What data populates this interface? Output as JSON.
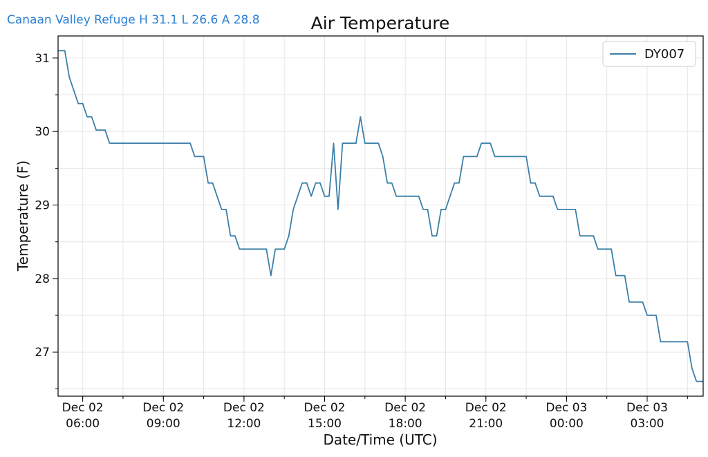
{
  "header": {
    "station_summary": "Canaan Valley Refuge H 31.1 L 26.6 A 28.8"
  },
  "chart_data": {
    "type": "line",
    "title": "Air Temperature",
    "xlabel": "Date/Time (UTC)",
    "ylabel": "Temperature (F)",
    "xlim": [
      "2024-12-02T05:05",
      "2024-12-03T05:05"
    ],
    "ylim": [
      26.4,
      31.3
    ],
    "grid": true,
    "legend": "top-right",
    "line_color": "#3b7fa8",
    "x_ticks": [
      {
        "date": "Dec 02",
        "time": "06:00",
        "at": "2024-12-02T06:00"
      },
      {
        "date": "Dec 02",
        "time": "09:00",
        "at": "2024-12-02T09:00"
      },
      {
        "date": "Dec 02",
        "time": "12:00",
        "at": "2024-12-02T12:00"
      },
      {
        "date": "Dec 02",
        "time": "15:00",
        "at": "2024-12-02T15:00"
      },
      {
        "date": "Dec 02",
        "time": "18:00",
        "at": "2024-12-02T18:00"
      },
      {
        "date": "Dec 02",
        "time": "21:00",
        "at": "2024-12-02T21:00"
      },
      {
        "date": "Dec 03",
        "time": "00:00",
        "at": "2024-12-03T00:00"
      },
      {
        "date": "Dec 03",
        "time": "03:00",
        "at": "2024-12-03T03:00"
      }
    ],
    "y_ticks": [
      27,
      28,
      29,
      30,
      31
    ],
    "series": [
      {
        "name": "DY007",
        "points": [
          [
            "2024-12-02T05:05",
            31.1
          ],
          [
            "2024-12-02T05:20",
            31.1
          ],
          [
            "2024-12-02T05:30",
            30.74
          ],
          [
            "2024-12-02T05:40",
            30.56
          ],
          [
            "2024-12-02T05:50",
            30.38
          ],
          [
            "2024-12-02T06:00",
            30.38
          ],
          [
            "2024-12-02T06:10",
            30.2
          ],
          [
            "2024-12-02T06:20",
            30.2
          ],
          [
            "2024-12-02T06:30",
            30.02
          ],
          [
            "2024-12-02T06:50",
            30.02
          ],
          [
            "2024-12-02T07:00",
            29.84
          ],
          [
            "2024-12-02T10:00",
            29.84
          ],
          [
            "2024-12-02T10:10",
            29.66
          ],
          [
            "2024-12-02T10:30",
            29.66
          ],
          [
            "2024-12-02T10:40",
            29.3
          ],
          [
            "2024-12-02T10:50",
            29.3
          ],
          [
            "2024-12-02T11:00",
            29.12
          ],
          [
            "2024-12-02T11:10",
            28.94
          ],
          [
            "2024-12-02T11:20",
            28.94
          ],
          [
            "2024-12-02T11:30",
            28.58
          ],
          [
            "2024-12-02T11:40",
            28.58
          ],
          [
            "2024-12-02T11:50",
            28.4
          ],
          [
            "2024-12-02T12:50",
            28.4
          ],
          [
            "2024-12-02T13:00",
            28.04
          ],
          [
            "2024-12-02T13:10",
            28.4
          ],
          [
            "2024-12-02T13:30",
            28.4
          ],
          [
            "2024-12-02T13:40",
            28.58
          ],
          [
            "2024-12-02T13:50",
            28.94
          ],
          [
            "2024-12-02T14:00",
            29.12
          ],
          [
            "2024-12-02T14:10",
            29.3
          ],
          [
            "2024-12-02T14:20",
            29.3
          ],
          [
            "2024-12-02T14:30",
            29.12
          ],
          [
            "2024-12-02T14:40",
            29.3
          ],
          [
            "2024-12-02T14:50",
            29.3
          ],
          [
            "2024-12-02T15:00",
            29.12
          ],
          [
            "2024-12-02T15:10",
            29.12
          ],
          [
            "2024-12-02T15:20",
            29.84
          ],
          [
            "2024-12-02T15:30",
            28.94
          ],
          [
            "2024-12-02T15:40",
            29.84
          ],
          [
            "2024-12-02T16:10",
            29.84
          ],
          [
            "2024-12-02T16:20",
            30.2
          ],
          [
            "2024-12-02T16:30",
            29.84
          ],
          [
            "2024-12-02T17:00",
            29.84
          ],
          [
            "2024-12-02T17:10",
            29.66
          ],
          [
            "2024-12-02T17:20",
            29.3
          ],
          [
            "2024-12-02T17:30",
            29.3
          ],
          [
            "2024-12-02T17:40",
            29.12
          ],
          [
            "2024-12-02T18:30",
            29.12
          ],
          [
            "2024-12-02T18:40",
            28.94
          ],
          [
            "2024-12-02T18:50",
            28.94
          ],
          [
            "2024-12-02T19:00",
            28.58
          ],
          [
            "2024-12-02T19:10",
            28.58
          ],
          [
            "2024-12-02T19:20",
            28.94
          ],
          [
            "2024-12-02T19:30",
            28.94
          ],
          [
            "2024-12-02T19:40",
            29.12
          ],
          [
            "2024-12-02T19:50",
            29.3
          ],
          [
            "2024-12-02T20:00",
            29.3
          ],
          [
            "2024-12-02T20:10",
            29.66
          ],
          [
            "2024-12-02T20:40",
            29.66
          ],
          [
            "2024-12-02T20:50",
            29.84
          ],
          [
            "2024-12-02T21:10",
            29.84
          ],
          [
            "2024-12-02T21:20",
            29.66
          ],
          [
            "2024-12-02T22:30",
            29.66
          ],
          [
            "2024-12-02T22:40",
            29.3
          ],
          [
            "2024-12-02T22:50",
            29.3
          ],
          [
            "2024-12-02T23:00",
            29.12
          ],
          [
            "2024-12-02T23:30",
            29.12
          ],
          [
            "2024-12-02T23:40",
            28.94
          ],
          [
            "2024-12-03T00:20",
            28.94
          ],
          [
            "2024-12-03T00:30",
            28.58
          ],
          [
            "2024-12-03T01:00",
            28.58
          ],
          [
            "2024-12-03T01:10",
            28.4
          ],
          [
            "2024-12-03T01:40",
            28.4
          ],
          [
            "2024-12-03T01:50",
            28.04
          ],
          [
            "2024-12-03T02:10",
            28.04
          ],
          [
            "2024-12-03T02:20",
            27.68
          ],
          [
            "2024-12-03T02:50",
            27.68
          ],
          [
            "2024-12-03T03:00",
            27.5
          ],
          [
            "2024-12-03T03:20",
            27.5
          ],
          [
            "2024-12-03T03:30",
            27.14
          ],
          [
            "2024-12-03T04:30",
            27.14
          ],
          [
            "2024-12-03T04:40",
            26.78
          ],
          [
            "2024-12-03T04:50",
            26.6
          ],
          [
            "2024-12-03T05:05",
            26.6
          ]
        ]
      }
    ]
  }
}
